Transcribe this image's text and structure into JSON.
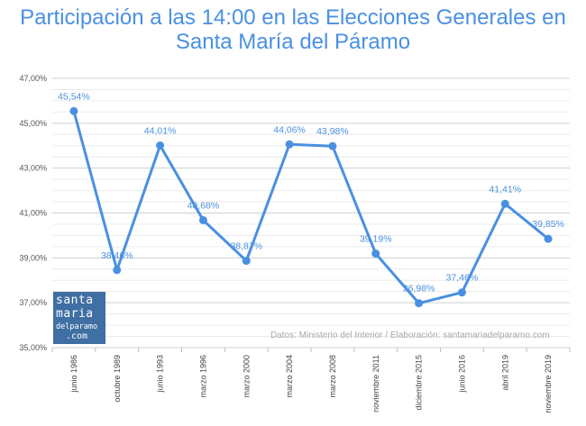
{
  "chart_data": {
    "type": "line",
    "title": "Participación a las 14:00 en las Elecciones Generales en Santa María del Páramo",
    "categories": [
      "junio 1986",
      "octubre 1989",
      "junio 1993",
      "marzo 1996",
      "marzo 2000",
      "marzo 2004",
      "marzo 2008",
      "noviembre 2011",
      "diciembre 2015",
      "junio 2016",
      "abril 2019",
      "noviembre 2019"
    ],
    "values": [
      45.54,
      38.46,
      44.01,
      40.68,
      38.87,
      44.06,
      43.98,
      39.19,
      36.98,
      37.46,
      41.41,
      39.85
    ],
    "data_labels": [
      "45,54%",
      "38,46%",
      "44,01%",
      "40,68%",
      "38,87%",
      "44,06%",
      "43,98%",
      "39,19%",
      "36,98%",
      "37,46%",
      "41,41%",
      "39,85%"
    ],
    "y_ticks": [
      35,
      37,
      39,
      41,
      43,
      45,
      47
    ],
    "y_tick_labels": [
      "35,00%",
      "37,00%",
      "39,00%",
      "41,00%",
      "43,00%",
      "45,00%",
      "47,00%"
    ],
    "ylim": [
      35,
      47
    ],
    "xlabel": "",
    "ylabel": "",
    "grid": true,
    "colors": {
      "line": "#4a90e2",
      "title": "#4a90e2",
      "grid": "#dddddd",
      "logo_bg": "#3f6fa3",
      "note": "#a8a8a8"
    }
  },
  "logo": {
    "line1": "santa",
    "line2": "maria",
    "line3": "delparamo",
    "line4": ".com"
  },
  "source_note": "Datos: Ministerio del Interior / Elaboración: santamariadelparamo.com"
}
